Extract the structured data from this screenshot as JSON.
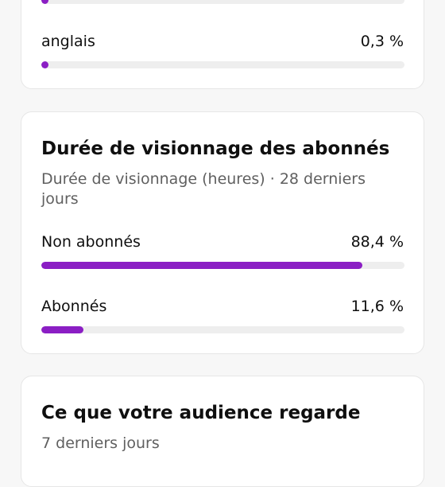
{
  "accent_color": "#8b1ec4",
  "language_card": {
    "rows": [
      {
        "label": "",
        "value": "",
        "percent": 1.0
      },
      {
        "label": "anglais",
        "value": "0,3 %",
        "percent": 0.3
      }
    ]
  },
  "watch_time_card": {
    "title": "Durée de visionnage des abonnés",
    "subtitle": "Durée de visionnage (heures) · 28 derniers jours",
    "rows": [
      {
        "label": "Non abonnés",
        "value": "88,4 %",
        "percent": 88.4
      },
      {
        "label": "Abonnés",
        "value": "11,6 %",
        "percent": 11.6
      }
    ]
  },
  "audience_card": {
    "title": "Ce que votre audience regarde",
    "subtitle": "7 derniers jours"
  }
}
